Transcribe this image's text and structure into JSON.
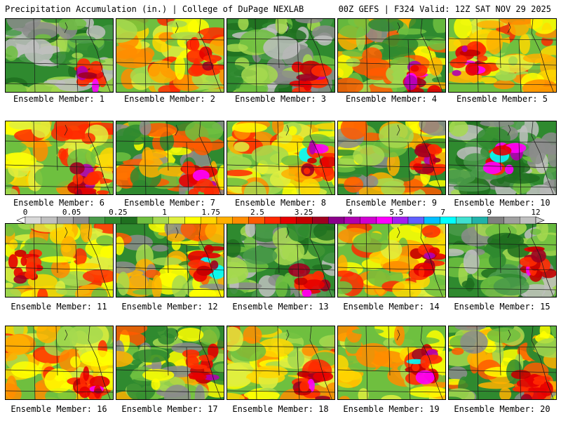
{
  "header": {
    "left": "Precipitation Accumulation (in.) | College of DuPage NEXLAB",
    "right": "00Z GEFS | F324 Valid: 12Z SAT NOV 29 2025"
  },
  "members": [
    {
      "label": "Ensemble Member: 1",
      "palette": "greenish",
      "hotspot": "se"
    },
    {
      "label": "Ensemble Member: 2",
      "palette": "warm",
      "hotspot": "e"
    },
    {
      "label": "Ensemble Member: 3",
      "palette": "greenish",
      "hotspot": "se"
    },
    {
      "label": "Ensemble Member: 4",
      "palette": "mixed",
      "hotspot": "se"
    },
    {
      "label": "Ensemble Member: 5",
      "palette": "warm",
      "hotspot": "w"
    },
    {
      "label": "Ensemble Member: 6",
      "palette": "warm",
      "hotspot": "se"
    },
    {
      "label": "Ensemble Member: 7",
      "palette": "mixed",
      "hotspot": "se"
    },
    {
      "label": "Ensemble Member: 8",
      "palette": "warm",
      "hotspot": "e"
    },
    {
      "label": "Ensemble Member: 9",
      "palette": "mixed",
      "hotspot": "e"
    },
    {
      "label": "Ensemble Member: 10",
      "palette": "greenish",
      "hotspot": "c"
    },
    {
      "label": "Ensemble Member: 11",
      "palette": "warm",
      "hotspot": "w"
    },
    {
      "label": "Ensemble Member: 12",
      "palette": "mixed",
      "hotspot": "e"
    },
    {
      "label": "Ensemble Member: 13",
      "palette": "greenish",
      "hotspot": "se"
    },
    {
      "label": "Ensemble Member: 14",
      "palette": "warm",
      "hotspot": "e"
    },
    {
      "label": "Ensemble Member: 15",
      "palette": "greenish",
      "hotspot": "e"
    },
    {
      "label": "Ensemble Member: 16",
      "palette": "warm",
      "hotspot": "se"
    },
    {
      "label": "Ensemble Member: 17",
      "palette": "mixed",
      "hotspot": "e"
    },
    {
      "label": "Ensemble Member: 18",
      "palette": "warm",
      "hotspot": "se"
    },
    {
      "label": "Ensemble Member: 19",
      "palette": "warm",
      "hotspot": "e"
    },
    {
      "label": "Ensemble Member: 20",
      "palette": "mixed",
      "hotspot": "se"
    }
  ],
  "colorbar": {
    "labels": [
      "0",
      "0.05",
      "0.25",
      "1",
      "1.75",
      "2.5",
      "3.25",
      "4",
      "5.5",
      "7",
      "9",
      "12"
    ],
    "colors": [
      "#d9d9d9",
      "#bfbfbf",
      "#a6a6a6",
      "#8c8c8c",
      "#4a9a4a",
      "#2f8a2f",
      "#1f6f1f",
      "#6fbf3f",
      "#a6d94f",
      "#dfef3f",
      "#ffff00",
      "#ffd700",
      "#ffb000",
      "#ff8c00",
      "#ff5a00",
      "#ff2a00",
      "#e60000",
      "#c40000",
      "#a00020",
      "#8b008b",
      "#b000b0",
      "#d000d0",
      "#ff00ff",
      "#a020f0",
      "#6060ff",
      "#00bfff",
      "#00ffff",
      "#40e0d0",
      "#20b2aa",
      "#808080",
      "#a0a0a0",
      "#c0c0c0"
    ]
  }
}
